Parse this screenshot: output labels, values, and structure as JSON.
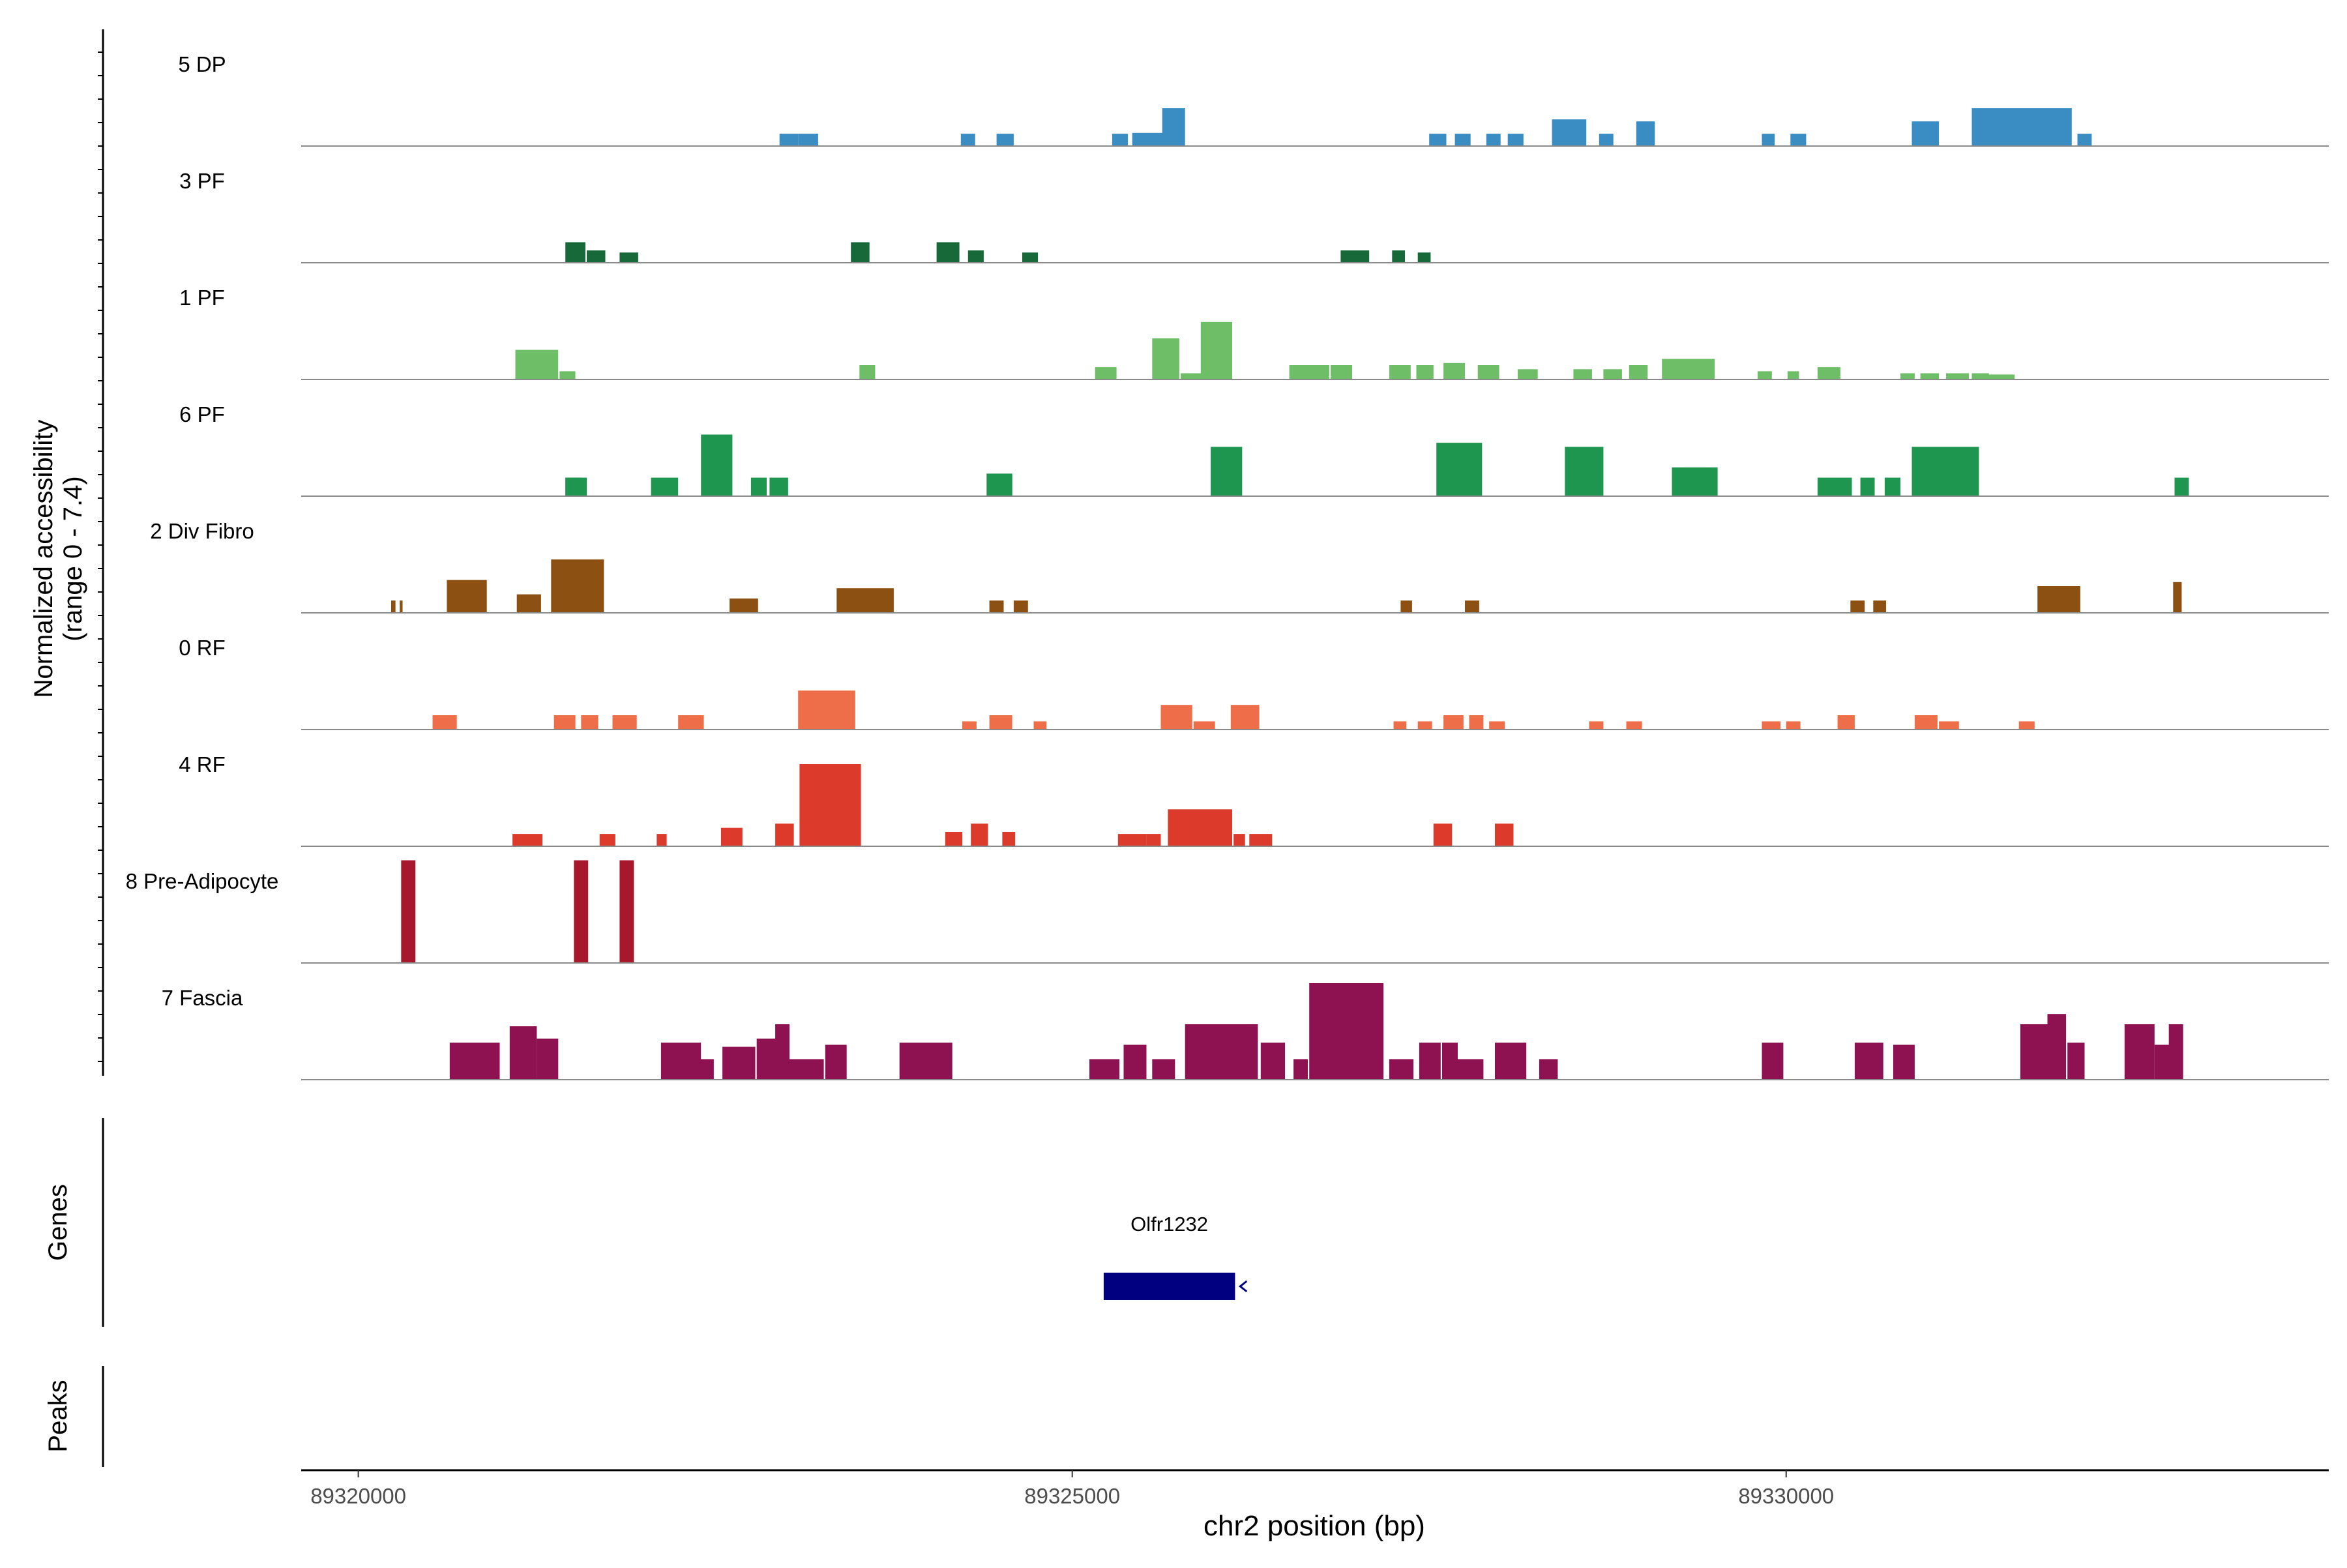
{
  "chart_data": {
    "type": "area",
    "title": "",
    "chromosome": "chr2",
    "xlabel": "chr2 position (bp)",
    "ylabel": "Normalized accessibility",
    "ylabel_range": "(range 0 - 7.4)",
    "y_range": [
      0,
      7.4
    ],
    "xlim": [
      89319600,
      89333800
    ],
    "x_ticks": [
      89320000,
      89325000,
      89330000
    ],
    "x_tick_labels": [
      "89320000",
      "89325000",
      "89330000"
    ],
    "tracks": [
      {
        "name": "5 DP",
        "color": "#3A8DC3",
        "peaks": [
          [
            89322950,
            89323080,
            0.3
          ],
          [
            89323080,
            89323220,
            0.3
          ],
          [
            89324220,
            89324320,
            0.3
          ],
          [
            89324470,
            89324590,
            0.3
          ],
          [
            89325280,
            89325390,
            0.3
          ],
          [
            89325420,
            89325640,
            0.32
          ],
          [
            89325630,
            89325790,
            0.92
          ],
          [
            89327500,
            89327620,
            0.3
          ],
          [
            89327680,
            89327790,
            0.3
          ],
          [
            89327900,
            89328000,
            0.3
          ],
          [
            89328050,
            89328160,
            0.3
          ],
          [
            89328360,
            89328600,
            0.65
          ],
          [
            89328690,
            89328790,
            0.3
          ],
          [
            89328950,
            89329080,
            0.6
          ],
          [
            89329830,
            89329920,
            0.3
          ],
          [
            89330030,
            89330140,
            0.3
          ],
          [
            89330880,
            89331070,
            0.6
          ],
          [
            89331300,
            89332000,
            0.92
          ],
          [
            89332040,
            89332140,
            0.3
          ]
        ]
      },
      {
        "name": "3 PF",
        "color": "#17693A",
        "peaks": [
          [
            89321450,
            89321590,
            0.5
          ],
          [
            89321600,
            89321730,
            0.3
          ],
          [
            89321830,
            89321960,
            0.25
          ],
          [
            89323450,
            89323580,
            0.5
          ],
          [
            89324050,
            89324210,
            0.5
          ],
          [
            89324270,
            89324380,
            0.3
          ],
          [
            89324650,
            89324760,
            0.25
          ],
          [
            89326880,
            89327080,
            0.3
          ],
          [
            89327240,
            89327330,
            0.3
          ],
          [
            89327420,
            89327510,
            0.25
          ]
        ]
      },
      {
        "name": "1 PF",
        "color": "#6DBE66",
        "peaks": [
          [
            89321100,
            89321400,
            0.72
          ],
          [
            89321410,
            89321520,
            0.2
          ],
          [
            89323510,
            89323620,
            0.35
          ],
          [
            89325160,
            89325310,
            0.3
          ],
          [
            89325560,
            89325750,
            1.0
          ],
          [
            89325760,
            89326000,
            0.15
          ],
          [
            89325900,
            89326120,
            1.4
          ],
          [
            89326520,
            89326800,
            0.35
          ],
          [
            89326810,
            89326960,
            0.35
          ],
          [
            89327220,
            89327370,
            0.35
          ],
          [
            89327410,
            89327530,
            0.35
          ],
          [
            89327600,
            89327750,
            0.4
          ],
          [
            89327840,
            89327990,
            0.35
          ],
          [
            89328120,
            89328260,
            0.25
          ],
          [
            89328510,
            89328640,
            0.25
          ],
          [
            89328720,
            89328850,
            0.25
          ],
          [
            89328900,
            89329030,
            0.35
          ],
          [
            89329130,
            89329500,
            0.5
          ],
          [
            89329800,
            89329900,
            0.2
          ],
          [
            89330010,
            89330090,
            0.2
          ],
          [
            89330220,
            89330380,
            0.3
          ],
          [
            89330800,
            89330900,
            0.15
          ],
          [
            89330940,
            89331070,
            0.15
          ],
          [
            89331120,
            89331280,
            0.15
          ],
          [
            89331300,
            89331420,
            0.15
          ],
          [
            89331400,
            89331600,
            0.12
          ]
        ]
      },
      {
        "name": "6 PF",
        "color": "#1E9650",
        "peaks": [
          [
            89321450,
            89321600,
            0.45
          ],
          [
            89321450,
            89321560,
            0.45
          ],
          [
            89322050,
            89322240,
            0.45
          ],
          [
            89322400,
            89322620,
            1.5
          ],
          [
            89322750,
            89322860,
            0.45
          ],
          [
            89322880,
            89323010,
            0.45
          ],
          [
            89324400,
            89324580,
            0.55
          ],
          [
            89325970,
            89326190,
            1.2
          ],
          [
            89327550,
            89327870,
            1.3
          ],
          [
            89328450,
            89328720,
            1.2
          ],
          [
            89329200,
            89329520,
            0.7
          ],
          [
            89330220,
            89330460,
            0.45
          ],
          [
            89330520,
            89330620,
            0.45
          ],
          [
            89330690,
            89330800,
            0.45
          ],
          [
            89330880,
            89331350,
            1.2
          ],
          [
            89332720,
            89332820,
            0.45
          ]
        ]
      },
      {
        "name": "2 Div Fibro",
        "color": "#8C5012",
        "peaks": [
          [
            89320230,
            89320260,
            0.3
          ],
          [
            89320290,
            89320310,
            0.3
          ],
          [
            89320620,
            89320900,
            0.8
          ],
          [
            89321110,
            89321280,
            0.45
          ],
          [
            89321350,
            89321720,
            1.3
          ],
          [
            89322600,
            89322800,
            0.35
          ],
          [
            89323350,
            89323750,
            0.6
          ],
          [
            89324420,
            89324520,
            0.3
          ],
          [
            89324590,
            89324690,
            0.3
          ],
          [
            89327300,
            89327380,
            0.3
          ],
          [
            89327750,
            89327850,
            0.3
          ],
          [
            89330450,
            89330550,
            0.3
          ],
          [
            89330610,
            89330700,
            0.3
          ],
          [
            89331760,
            89332060,
            0.65
          ],
          [
            89332710,
            89332770,
            0.75
          ]
        ]
      },
      {
        "name": "0 RF",
        "color": "#EE6E4A",
        "peaks": [
          [
            89320520,
            89320690,
            0.35
          ],
          [
            89321370,
            89321520,
            0.35
          ],
          [
            89321560,
            89321680,
            0.35
          ],
          [
            89321780,
            89321950,
            0.35
          ],
          [
            89322240,
            89322420,
            0.35
          ],
          [
            89323080,
            89323480,
            0.95
          ],
          [
            89324230,
            89324330,
            0.2
          ],
          [
            89324420,
            89324580,
            0.35
          ],
          [
            89324730,
            89324820,
            0.2
          ],
          [
            89325620,
            89325840,
            0.6
          ],
          [
            89325850,
            89326000,
            0.2
          ],
          [
            89326110,
            89326310,
            0.6
          ],
          [
            89327250,
            89327340,
            0.2
          ],
          [
            89327420,
            89327520,
            0.2
          ],
          [
            89327600,
            89327740,
            0.35
          ],
          [
            89327780,
            89327880,
            0.35
          ],
          [
            89327920,
            89328030,
            0.2
          ],
          [
            89328620,
            89328720,
            0.2
          ],
          [
            89328880,
            89328990,
            0.2
          ],
          [
            89329830,
            89329960,
            0.2
          ],
          [
            89330000,
            89330100,
            0.2
          ],
          [
            89330360,
            89330480,
            0.35
          ],
          [
            89330900,
            89331060,
            0.35
          ],
          [
            89331070,
            89331210,
            0.2
          ],
          [
            89331630,
            89331740,
            0.2
          ]
        ]
      },
      {
        "name": "4 RF",
        "color": "#DC3A2B",
        "peaks": [
          [
            89321080,
            89321290,
            0.3
          ],
          [
            89321690,
            89321800,
            0.3
          ],
          [
            89322090,
            89322160,
            0.3
          ],
          [
            89322540,
            89322690,
            0.45
          ],
          [
            89322920,
            89323050,
            0.55
          ],
          [
            89323090,
            89323520,
            2.0
          ],
          [
            89324110,
            89324230,
            0.35
          ],
          [
            89324290,
            89324410,
            0.55
          ],
          [
            89324510,
            89324600,
            0.35
          ],
          [
            89325320,
            89325520,
            0.3
          ],
          [
            89325520,
            89325620,
            0.3
          ],
          [
            89325670,
            89326120,
            0.9
          ],
          [
            89326130,
            89326210,
            0.3
          ],
          [
            89326240,
            89326400,
            0.3
          ],
          [
            89327530,
            89327660,
            0.55
          ],
          [
            89327960,
            89328090,
            0.55
          ]
        ]
      },
      {
        "name": "8 Pre-Adipocyte",
        "color": "#A8182C",
        "peaks": [
          [
            89320300,
            89320400,
            2.5
          ],
          [
            89321510,
            89321610,
            2.5
          ],
          [
            89321830,
            89321930,
            2.5
          ]
        ]
      },
      {
        "name": "7 Fascia",
        "color": "#8E1252",
        "peaks": [
          [
            89320640,
            89320990,
            0.9
          ],
          [
            89321060,
            89321250,
            1.3
          ],
          [
            89321250,
            89321400,
            1.0
          ],
          [
            89322120,
            89322400,
            0.9
          ],
          [
            89322390,
            89322490,
            0.5
          ],
          [
            89322550,
            89322780,
            0.8
          ],
          [
            89322790,
            89322930,
            1.0
          ],
          [
            89322920,
            89323020,
            1.35
          ],
          [
            89323010,
            89323260,
            0.5
          ],
          [
            89323270,
            89323420,
            0.85
          ],
          [
            89323790,
            89324160,
            0.9
          ],
          [
            89325120,
            89325330,
            0.5
          ],
          [
            89325360,
            89325520,
            0.85
          ],
          [
            89325560,
            89325720,
            0.5
          ],
          [
            89325790,
            89326300,
            1.35
          ],
          [
            89326320,
            89326490,
            0.9
          ],
          [
            89326550,
            89326650,
            0.5
          ],
          [
            89326660,
            89327180,
            2.35
          ],
          [
            89327220,
            89327390,
            0.5
          ],
          [
            89327430,
            89327580,
            0.9
          ],
          [
            89327590,
            89327700,
            0.9
          ],
          [
            89327700,
            89327880,
            0.5
          ],
          [
            89327960,
            89328180,
            0.9
          ],
          [
            89328270,
            89328400,
            0.5
          ],
          [
            89329830,
            89329980,
            0.9
          ],
          [
            89330480,
            89330680,
            0.9
          ],
          [
            89330750,
            89330900,
            0.85
          ],
          [
            89331640,
            89331830,
            1.35
          ],
          [
            89331830,
            89331960,
            1.6
          ],
          [
            89331970,
            89332090,
            0.9
          ],
          [
            89332370,
            89332580,
            1.35
          ],
          [
            89332580,
            89332750,
            0.85
          ],
          [
            89332680,
            89332780,
            1.35
          ]
        ]
      }
    ],
    "genes": [
      {
        "name": "Olfr1232",
        "start": 89325220,
        "end": 89326140,
        "strand": "-",
        "color": "#000080"
      }
    ],
    "panels": {
      "genes_label": "Genes",
      "peaks_label": "Peaks"
    }
  }
}
